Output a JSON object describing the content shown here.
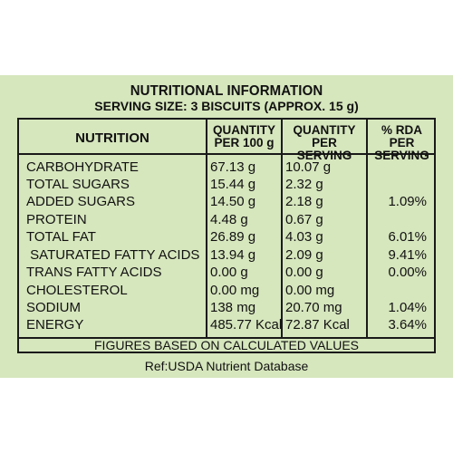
{
  "title": "NUTRITIONAL INFORMATION",
  "serving_size": "SERVING SIZE: 3 BISCUITS (APPROX. 15 g)",
  "headers": {
    "nutrition": "NUTRITION",
    "per100_line1": "QUANTITY",
    "per100_line2": "PER 100 g",
    "perserving_line1": "QUANTITY",
    "perserving_line2": "PER SERVING",
    "rda_line1": "% RDA PER",
    "rda_line2": "SERVING"
  },
  "rows": [
    {
      "name": "CARBOHYDRATE",
      "per100": "67.13 g",
      "perserving": "10.07 g",
      "rda": ""
    },
    {
      "name": "TOTAL SUGARS",
      "per100": "15.44 g",
      "perserving": "2.32 g",
      "rda": ""
    },
    {
      "name": "ADDED SUGARS",
      "per100": "14.50 g",
      "perserving": "2.18 g",
      "rda": "1.09%"
    },
    {
      "name": "PROTEIN",
      "per100": "4.48 g",
      "perserving": "0.67 g",
      "rda": ""
    },
    {
      "name": "TOTAL FAT",
      "per100": "26.89 g",
      "perserving": "4.03 g",
      "rda": "6.01%"
    },
    {
      "name": " SATURATED FATTY ACIDS",
      "per100": "13.94 g",
      "perserving": "2.09 g",
      "rda": "9.41%"
    },
    {
      "name": "TRANS FATTY ACIDS",
      "per100": "0.00 g",
      "perserving": "0.00 g",
      "rda": "0.00%"
    },
    {
      "name": "CHOLESTEROL",
      "per100": "0.00 mg",
      "perserving": "0.00 mg",
      "rda": ""
    },
    {
      "name": "SODIUM",
      "per100": "138 mg",
      "perserving": "20.70 mg",
      "rda": "1.04%"
    },
    {
      "name": "ENERGY",
      "per100": "485.77 Kcal",
      "perserving": "72.87 Kcal",
      "rda": "3.64%"
    }
  ],
  "footer_note": "FIGURES BASED ON CALCULATED VALUES",
  "reference": "Ref:USDA Nutrient Database",
  "colors": {
    "panel": "#d6e6bd",
    "border": "#1a1a1a"
  }
}
